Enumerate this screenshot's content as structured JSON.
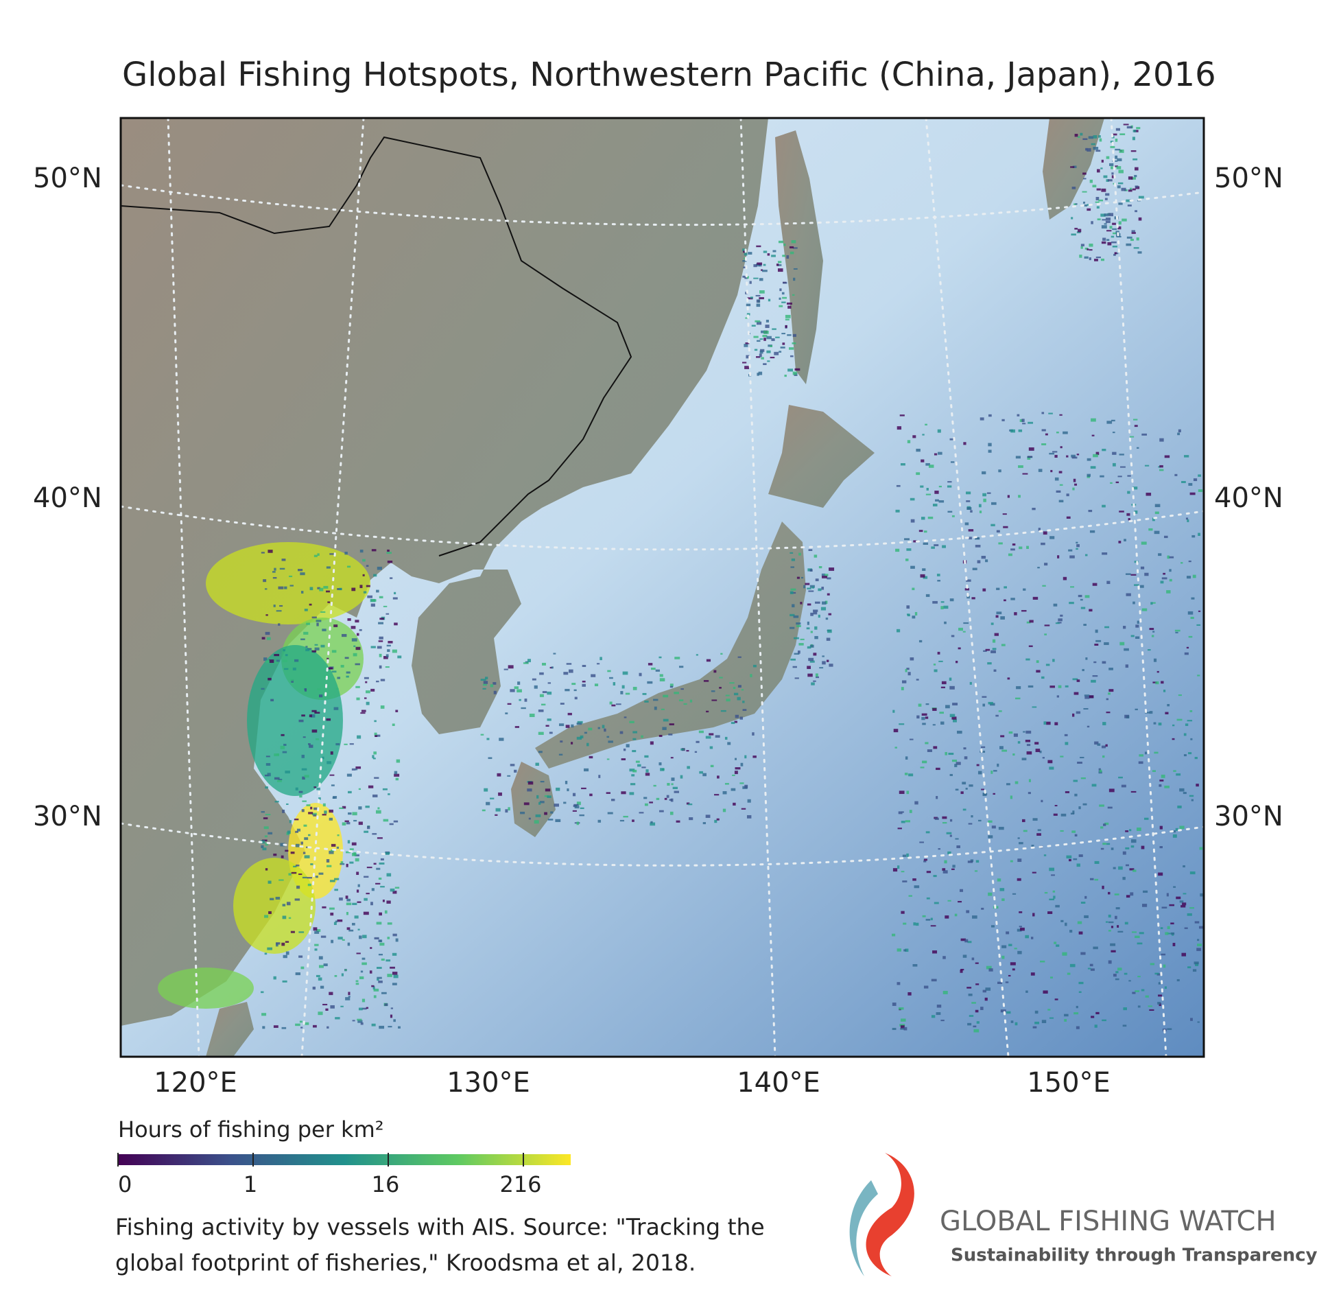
{
  "title": "Global Fishing Hotspots, Northwestern Pacific (China, Japan), 2016",
  "map": {
    "latitude_labels": [
      "50°N",
      "40°N",
      "30°N"
    ],
    "longitude_labels": [
      "120°E",
      "130°E",
      "140°E",
      "150°E"
    ]
  },
  "legend": {
    "title": "Hours of fishing per km²",
    "ticks": [
      0,
      1,
      16,
      216
    ]
  },
  "source": [
    "Fishing activity by vessels with AIS. Source: \"Tracking the",
    "global footprint of fisheries,\" Kroodsma et al, 2018."
  ],
  "logo": {
    "name": "GLOBAL FISHING WATCH",
    "tagline": "Sustainability through Transparency"
  }
}
